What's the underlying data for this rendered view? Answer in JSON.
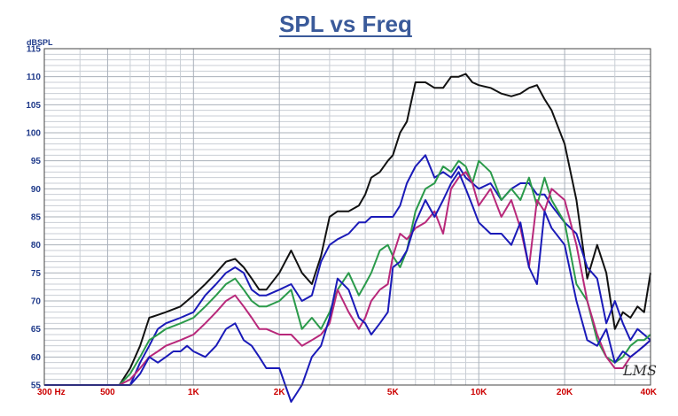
{
  "chart_data": {
    "type": "line",
    "title": "SPL vs Freq",
    "ylabel": "dBSPL",
    "xlabel": "",
    "x_scale": "log",
    "xlim": [
      300,
      40000
    ],
    "ylim": [
      55,
      115
    ],
    "grid": true,
    "y_ticks": [
      "115",
      "110",
      "105",
      "100",
      "95",
      "90",
      "85",
      "80",
      "75",
      "70",
      "65",
      "60",
      "55"
    ],
    "x_ticks": [
      {
        "value": 300,
        "label": "300  Hz"
      },
      {
        "value": 500,
        "label": "500"
      },
      {
        "value": 1000,
        "label": "1K"
      },
      {
        "value": 2000,
        "label": "2K"
      },
      {
        "value": 5000,
        "label": "5K"
      },
      {
        "value": 10000,
        "label": "10K"
      },
      {
        "value": 20000,
        "label": "20K"
      },
      {
        "value": 40000,
        "label": "40K"
      }
    ],
    "watermark": "LMS",
    "series": [
      {
        "color": "#111111",
        "x": [
          300,
          550,
          600,
          650,
          700,
          750,
          800,
          900,
          1000,
          1100,
          1200,
          1300,
          1400,
          1500,
          1600,
          1700,
          1800,
          2000,
          2200,
          2400,
          2600,
          2800,
          3000,
          3200,
          3500,
          3800,
          4000,
          4200,
          4500,
          4800,
          5000,
          5300,
          5600,
          6000,
          6500,
          7000,
          7500,
          8000,
          8500,
          9000,
          9500,
          10000,
          11000,
          12000,
          13000,
          14000,
          15000,
          16000,
          17000,
          18000,
          20000,
          22000,
          24000,
          26000,
          28000,
          30000,
          32000,
          34000,
          36000,
          38000,
          40000
        ],
        "y": [
          55,
          55,
          58,
          62,
          67,
          67.5,
          68,
          69,
          71,
          73,
          75,
          77,
          77.5,
          76,
          74,
          72,
          72,
          75,
          79,
          75,
          73,
          78,
          85,
          86,
          86,
          87,
          89,
          92,
          93,
          95,
          96,
          100,
          102,
          109,
          109,
          108,
          108,
          110,
          110,
          110.5,
          109,
          108.5,
          108,
          107,
          106.5,
          107,
          108,
          108.5,
          106,
          104,
          98,
          88,
          74,
          80,
          75,
          65,
          68,
          67,
          69,
          68,
          75
        ]
      },
      {
        "color": "#1a1ab8",
        "x": [
          300,
          600,
          650,
          700,
          750,
          800,
          900,
          1000,
          1100,
          1200,
          1300,
          1400,
          1500,
          1600,
          1700,
          1800,
          2000,
          2200,
          2400,
          2600,
          2800,
          3000,
          3200,
          3500,
          3800,
          4000,
          4200,
          4500,
          4800,
          5000,
          5300,
          5600,
          6000,
          6500,
          7000,
          7500,
          8000,
          8500,
          9000,
          9500,
          10000,
          11000,
          12000,
          13000,
          14000,
          15000,
          16000,
          17000,
          18000,
          20000,
          22000,
          24000,
          26000,
          28000,
          30000,
          32000,
          34000,
          36000,
          38000,
          40000
        ],
        "y": [
          55,
          55,
          59,
          62,
          65,
          66,
          67,
          68,
          71,
          73,
          75,
          76,
          75,
          72,
          71,
          71,
          72,
          73,
          70,
          71,
          77,
          80,
          81,
          82,
          84,
          84,
          85,
          85,
          85,
          85,
          87,
          91,
          94,
          96,
          92,
          93,
          92,
          94,
          92,
          91,
          90,
          91,
          88,
          90,
          91,
          91,
          89,
          89,
          87,
          84,
          82,
          76,
          74,
          66,
          70,
          66,
          63,
          65,
          64,
          63
        ]
      },
      {
        "color": "#2a9a4a",
        "x": [
          300,
          550,
          600,
          650,
          700,
          750,
          800,
          900,
          1000,
          1100,
          1200,
          1300,
          1400,
          1500,
          1600,
          1700,
          1800,
          2000,
          2200,
          2400,
          2600,
          2800,
          3000,
          3200,
          3500,
          3800,
          4000,
          4200,
          4500,
          4800,
          5000,
          5300,
          5600,
          6000,
          6500,
          7000,
          7500,
          8000,
          8500,
          9000,
          9500,
          10000,
          11000,
          12000,
          13000,
          14000,
          15000,
          16000,
          17000,
          18000,
          20000,
          22000,
          24000,
          26000,
          28000,
          30000,
          32000,
          34000,
          36000,
          38000,
          40000
        ],
        "y": [
          55,
          55,
          57,
          60,
          63,
          64,
          65,
          66,
          67,
          69,
          71,
          73,
          74,
          72,
          70,
          69,
          69,
          70,
          72,
          65,
          67,
          65,
          68,
          72,
          75,
          71,
          73,
          75,
          79,
          80,
          78,
          76,
          79,
          86,
          90,
          91,
          94,
          93,
          95,
          94,
          91,
          95,
          93,
          88,
          90,
          88,
          92,
          87,
          92,
          88,
          84,
          73,
          70,
          63,
          60,
          59,
          60,
          62,
          63,
          63,
          64
        ]
      },
      {
        "color": "#b8287a",
        "x": [
          300,
          550,
          600,
          650,
          700,
          750,
          800,
          900,
          1000,
          1100,
          1200,
          1300,
          1400,
          1500,
          1600,
          1700,
          1800,
          2000,
          2200,
          2400,
          2600,
          2800,
          3000,
          3200,
          3500,
          3800,
          4000,
          4200,
          4500,
          4800,
          5000,
          5300,
          5600,
          6000,
          6500,
          7000,
          7500,
          8000,
          8500,
          9000,
          9500,
          10000,
          11000,
          12000,
          13000,
          14000,
          15000,
          16000,
          17000,
          18000,
          20000,
          22000,
          24000,
          26000,
          28000,
          30000,
          32000,
          34000,
          36000,
          38000,
          40000
        ],
        "y": [
          55,
          55,
          56,
          58,
          60,
          61,
          62,
          63,
          64,
          66,
          68,
          70,
          71,
          69,
          67,
          65,
          65,
          64,
          64,
          62,
          63,
          64,
          66,
          72,
          68,
          65,
          67,
          70,
          72,
          73,
          78,
          82,
          81,
          83,
          84,
          86,
          82,
          90,
          92,
          93,
          91,
          87,
          90,
          85,
          88,
          83,
          76,
          88,
          86,
          90,
          88,
          80,
          70,
          64,
          60,
          58,
          58,
          60,
          61,
          62,
          63
        ]
      },
      {
        "color": "#1a1ab8",
        "x": [
          300,
          600,
          650,
          700,
          750,
          800,
          850,
          900,
          950,
          1000,
          1100,
          1200,
          1300,
          1400,
          1500,
          1600,
          1700,
          1800,
          2000,
          2200,
          2400,
          2600,
          2800,
          3000,
          3200,
          3500,
          3800,
          4000,
          4200,
          4500,
          4800,
          5000,
          5300,
          5600,
          6000,
          6500,
          7000,
          7500,
          8000,
          8500,
          9000,
          9500,
          10000,
          11000,
          12000,
          13000,
          14000,
          15000,
          16000,
          17000,
          18000,
          20000,
          22000,
          24000,
          26000,
          28000,
          30000,
          32000,
          34000,
          36000,
          38000,
          40000
        ],
        "y": [
          55,
          55,
          57,
          60,
          59,
          60,
          61,
          61,
          62,
          61,
          60,
          62,
          65,
          66,
          63,
          62,
          60,
          58,
          58,
          52,
          55,
          60,
          62,
          67,
          74,
          72,
          67,
          66,
          64,
          66,
          68,
          76,
          77,
          79,
          84,
          88,
          85,
          88,
          91,
          93,
          90,
          87,
          84,
          82,
          82,
          80,
          84,
          76,
          73,
          86,
          83,
          80,
          70,
          63,
          62,
          65,
          59,
          61,
          60,
          61,
          62,
          63
        ]
      }
    ]
  }
}
